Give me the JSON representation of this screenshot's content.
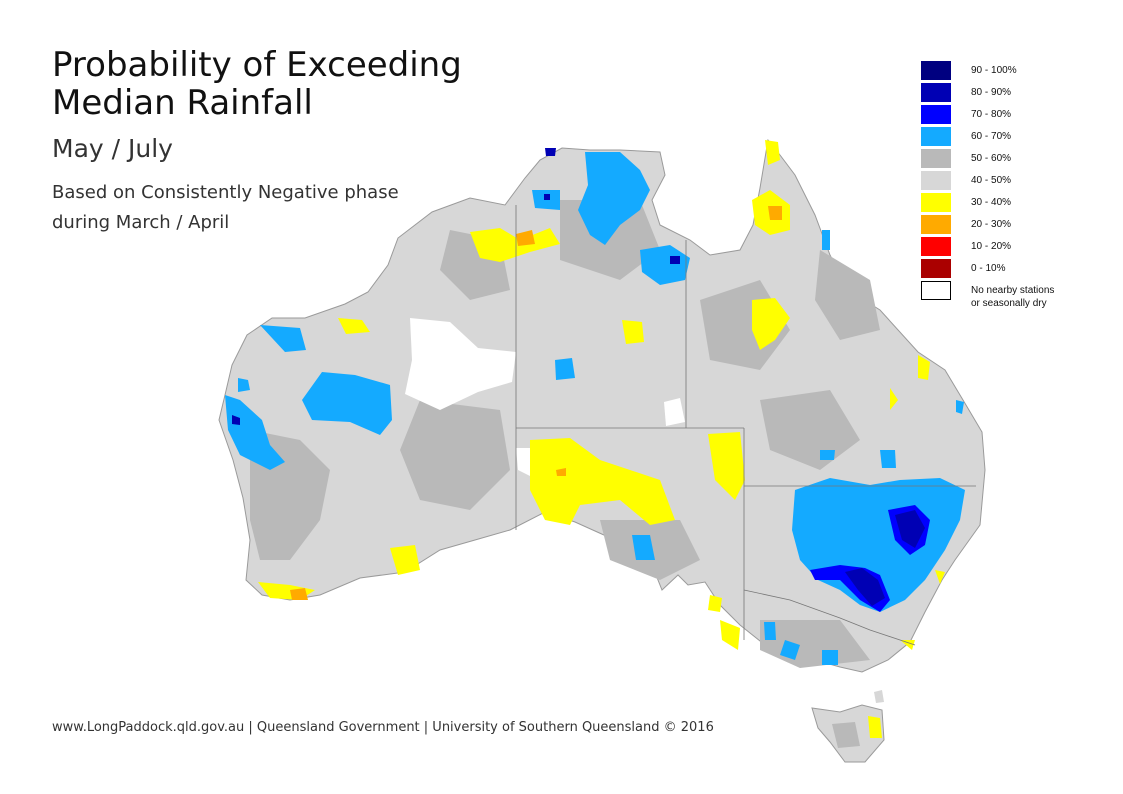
{
  "title_line1": "Probability of Exceeding",
  "title_line2": "Median Rainfall",
  "subtitle": "May / July",
  "description_line1": "Based on Consistently Negative phase",
  "description_line2": "during March / April",
  "credit": "www.LongPaddock.qld.gov.au | Queensland Government | University of Southern Queensland © 2016",
  "legend": [
    {
      "label": "90 - 100%",
      "color": "#000080"
    },
    {
      "label": "80 - 90%",
      "color": "#0000b4"
    },
    {
      "label": "70 - 80%",
      "color": "#0000ff"
    },
    {
      "label": "60 - 70%",
      "color": "#14aaff"
    },
    {
      "label": "50 - 60%",
      "color": "#b9b9b9"
    },
    {
      "label": "40 - 50%",
      "color": "#d7d7d7"
    },
    {
      "label": "30 - 40%",
      "color": "#ffff00"
    },
    {
      "label": "20 - 30%",
      "color": "#ffaa00"
    },
    {
      "label": "10 - 20%",
      "color": "#ff0000"
    },
    {
      "label": "0 - 10%",
      "color": "#aa0000"
    }
  ],
  "legend_nodata_line1": "No nearby stations",
  "legend_nodata_line2": "or seasonally dry"
}
